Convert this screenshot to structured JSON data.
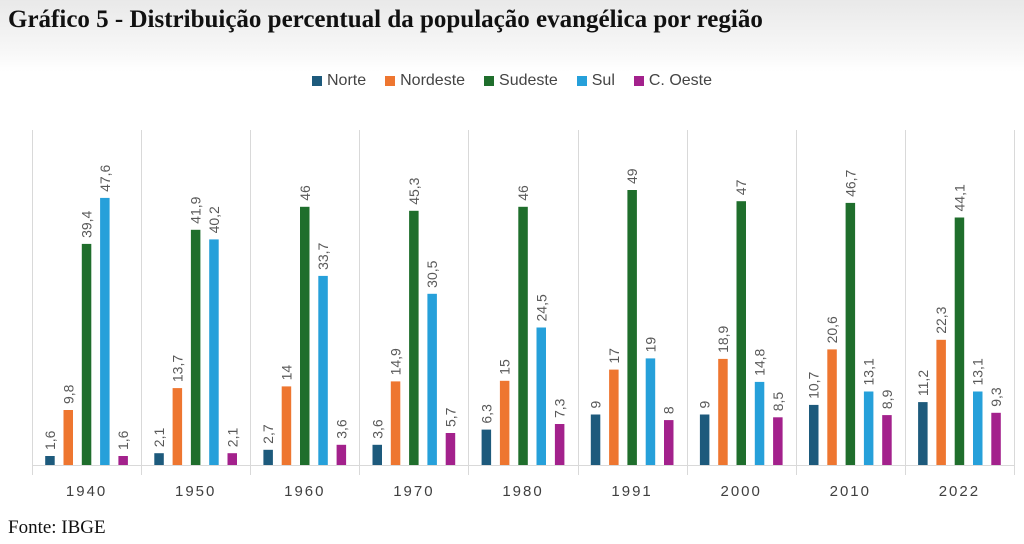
{
  "title": "Gráfico 5 - Distribuição percentual da população evangélica por região",
  "source": "Fonte: IBGE",
  "colors": {
    "Norte": "#1d5a7c",
    "Nordeste": "#ee7630",
    "Sudeste": "#1f6e2c",
    "Sul": "#26a0da",
    "C. Oeste": "#a3218c"
  },
  "chart_data": {
    "type": "bar",
    "title": "Gráfico 5 - Distribuição percentual da população evangélica por região",
    "xlabel": "",
    "ylabel": "",
    "ylim": [
      0,
      50
    ],
    "legend": "top-center",
    "grid": false,
    "categories": [
      "1940",
      "1950",
      "1960",
      "1970",
      "1980",
      "1991",
      "2000",
      "2010",
      "2022"
    ],
    "series": [
      {
        "name": "Norte",
        "values": [
          1.6,
          2.1,
          2.7,
          3.6,
          6.3,
          9,
          9,
          10.7,
          11.2
        ],
        "labels": [
          "1,6",
          "2,1",
          "2,7",
          "3,6",
          "6,3",
          "9",
          "9",
          "10,7",
          "11,2"
        ]
      },
      {
        "name": "Nordeste",
        "values": [
          9.8,
          13.7,
          14,
          14.9,
          15,
          17,
          18.9,
          20.6,
          22.3
        ],
        "labels": [
          "9,8",
          "13,7",
          "14",
          "14,9",
          "15",
          "17",
          "18,9",
          "20,6",
          "22,3"
        ]
      },
      {
        "name": "Sudeste",
        "values": [
          39.4,
          41.9,
          46,
          45.3,
          46,
          49,
          47,
          46.7,
          44.1
        ],
        "labels": [
          "39,4",
          "41,9",
          "46",
          "45,3",
          "46",
          "49",
          "47",
          "46,7",
          "44,1"
        ]
      },
      {
        "name": "Sul",
        "values": [
          47.6,
          40.2,
          33.7,
          30.5,
          24.5,
          19,
          14.8,
          13.1,
          13.1
        ],
        "labels": [
          "47,6",
          "40,2",
          "33,7",
          "30,5",
          "24,5",
          "19",
          "14,8",
          "13,1",
          "13,1"
        ]
      },
      {
        "name": "C. Oeste",
        "values": [
          1.6,
          2.1,
          3.6,
          5.7,
          7.3,
          8,
          8.5,
          8.9,
          9.3
        ],
        "labels": [
          "1,6",
          "2,1",
          "3,6",
          "5,7",
          "7,3",
          "8",
          "8,5",
          "8,9",
          "9,3"
        ]
      }
    ]
  }
}
